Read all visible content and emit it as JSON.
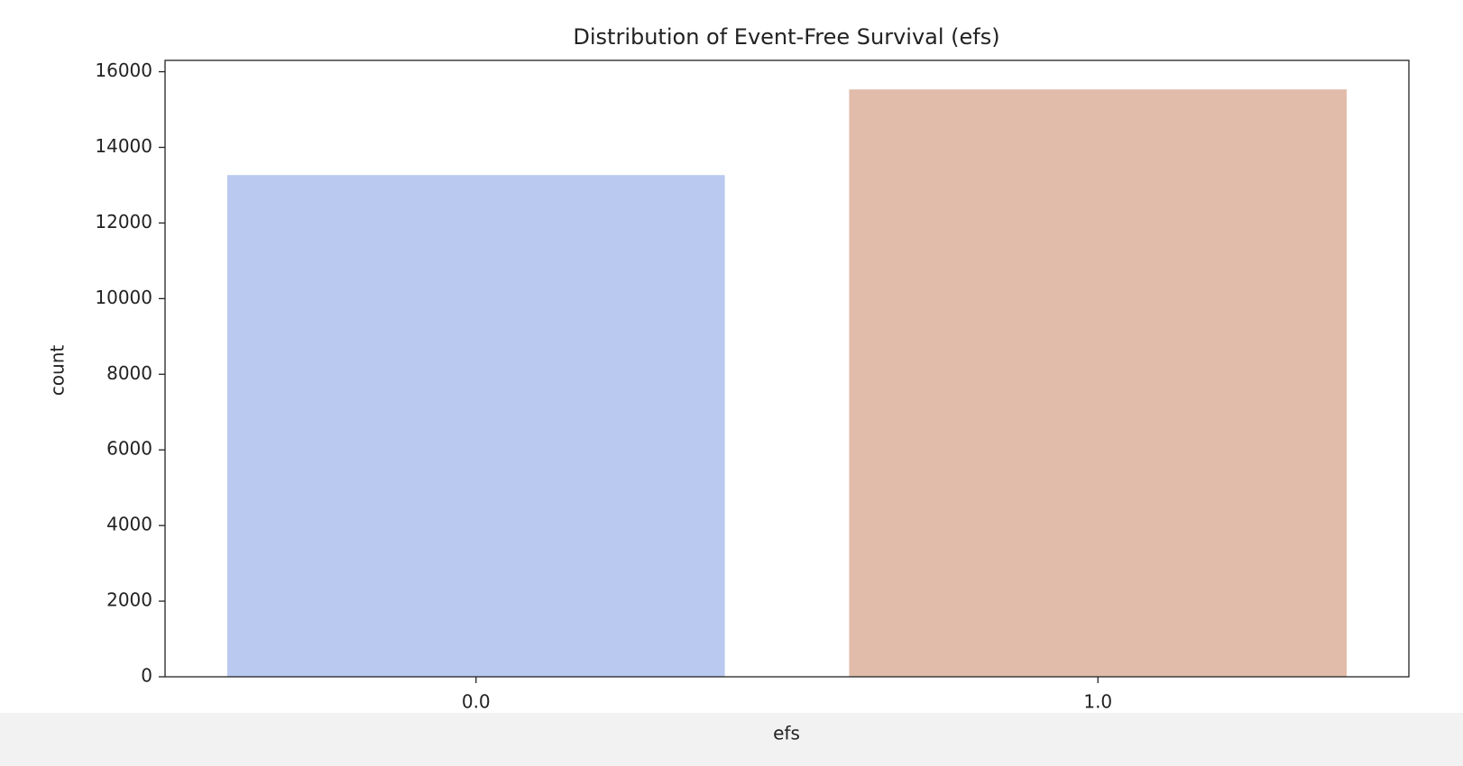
{
  "chart_data": {
    "type": "bar",
    "title": "Distribution of Event-Free Survival (efs)",
    "x_label": "efs",
    "y_label": "count",
    "categories": [
      "0.0",
      "1.0"
    ],
    "values": [
      13268,
      15532
    ],
    "colors": [
      "#b9c9f0",
      "#e2bcaa"
    ],
    "ylim": [
      0,
      16300
    ],
    "yticks": [
      0,
      2000,
      4000,
      6000,
      8000,
      10000,
      12000,
      14000,
      16000
    ],
    "grid": false
  }
}
